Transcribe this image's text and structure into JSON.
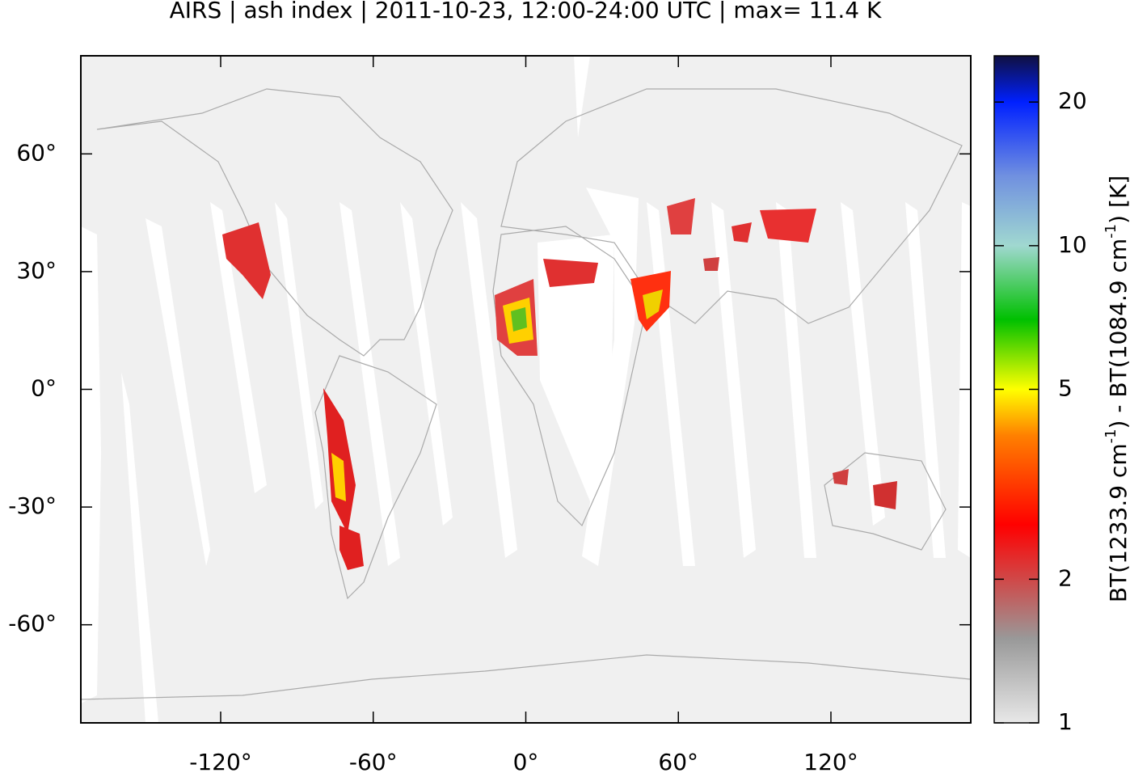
{
  "chart_data": {
    "type": "map",
    "title": "AIRS | ash index | 2011-10-23, 12:00-24:00 UTC | max= 11.4 K",
    "xlim": [
      -175,
      175
    ],
    "ylim": [
      -85,
      85
    ],
    "xticks": [
      {
        "value": -120,
        "label": "-120°"
      },
      {
        "value": -60,
        "label": "-60°"
      },
      {
        "value": 0,
        "label": "0°"
      },
      {
        "value": 60,
        "label": "60°"
      },
      {
        "value": 120,
        "label": "120°"
      }
    ],
    "yticks": [
      {
        "value": 60,
        "label": "60°"
      },
      {
        "value": 30,
        "label": "30°"
      },
      {
        "value": 0,
        "label": "0°"
      },
      {
        "value": -30,
        "label": "-30°"
      },
      {
        "value": -60,
        "label": "-60°"
      }
    ],
    "colorbar_label": [
      "BT(1233.9 cm",
      "-1",
      ") - BT(1084.9 cm",
      "-1",
      ") [K]"
    ],
    "colorbar_lim": [
      1,
      25
    ],
    "colorbar_log": true,
    "colorbar_ticks": [
      1,
      2,
      5,
      10,
      20
    ],
    "colormap": [
      {
        "value": 1,
        "color": "#e8e8e8"
      },
      {
        "value": 1.5,
        "color": "#999999"
      },
      {
        "value": 2,
        "color": "#d04848"
      },
      {
        "value": 2.6,
        "color": "#ff0000"
      },
      {
        "value": 4,
        "color": "#ff8000"
      },
      {
        "value": 5,
        "color": "#ffff00"
      },
      {
        "value": 7,
        "color": "#00c000"
      },
      {
        "value": 10,
        "color": "#a0d8d0"
      },
      {
        "value": 14,
        "color": "#7090e0"
      },
      {
        "value": 20,
        "color": "#0020ff"
      },
      {
        "value": 25,
        "color": "#101040"
      }
    ]
  }
}
